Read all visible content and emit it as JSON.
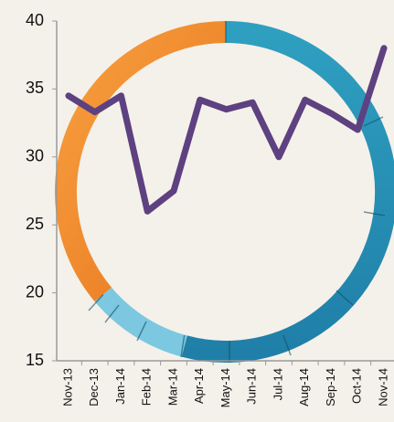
{
  "chart_data": {
    "type": "line",
    "categories": [
      "Nov-13",
      "Dec-13",
      "Jan-14",
      "Feb-14",
      "Mar-14",
      "Apr-14",
      "May-14",
      "Jun-14",
      "Jul-14",
      "Aug-14",
      "Sep-14",
      "Oct-14",
      "Nov-14"
    ],
    "values": [
      34.5,
      33.3,
      34.5,
      26,
      27.5,
      34.2,
      33.5,
      34,
      30,
      34.2,
      33.2,
      32,
      38
    ],
    "color": "#5e4180",
    "ylim": [
      15,
      40
    ],
    "yticks": [
      15,
      20,
      25,
      30,
      35,
      40
    ]
  }
}
